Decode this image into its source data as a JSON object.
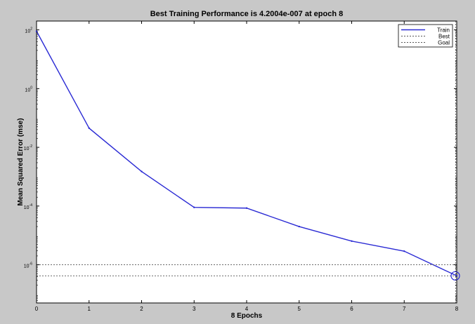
{
  "chart_data": {
    "type": "line",
    "title": "Best Training Performance is 4.2004e-007 at epoch 8",
    "xlabel": "8 Epochs",
    "ylabel": "Mean Squared Error (mse)",
    "xlim": [
      0,
      8
    ],
    "ylim": [
      5e-08,
      200
    ],
    "yscale": "log",
    "grid": false,
    "legend_position": "top-right",
    "x_ticks": [
      0,
      1,
      2,
      3,
      4,
      5,
      6,
      7,
      8
    ],
    "y_ticks": [
      {
        "value": 100,
        "mantissa": "10",
        "exp": "2"
      },
      {
        "value": 1,
        "mantissa": "10",
        "exp": "0"
      },
      {
        "value": 0.01,
        "mantissa": "10",
        "exp": "-2"
      },
      {
        "value": 0.0001,
        "mantissa": "10",
        "exp": "-4"
      },
      {
        "value": 1e-06,
        "mantissa": "10",
        "exp": "-6"
      }
    ],
    "series": [
      {
        "name": "Train",
        "color": "#2a2ad4",
        "style": "solid",
        "x": [
          0,
          1,
          2,
          3,
          4,
          5,
          6,
          7,
          8
        ],
        "y": [
          90,
          0.045,
          0.0015,
          9e-05,
          8.5e-05,
          2e-05,
          6.4e-06,
          2.9e-06,
          4.2e-07
        ]
      },
      {
        "name": "Best",
        "color": "#555555",
        "style": "dotted",
        "x": [
          0,
          8
        ],
        "y": [
          4.2e-07,
          4.2e-07
        ]
      },
      {
        "name": "Goal",
        "color": "#555555",
        "style": "dotted",
        "x": [
          0,
          8
        ],
        "y": [
          1e-06,
          1e-06
        ]
      }
    ],
    "best_marker": {
      "x": 8,
      "y": 4.2e-07,
      "color": "#2a2ad4"
    }
  }
}
